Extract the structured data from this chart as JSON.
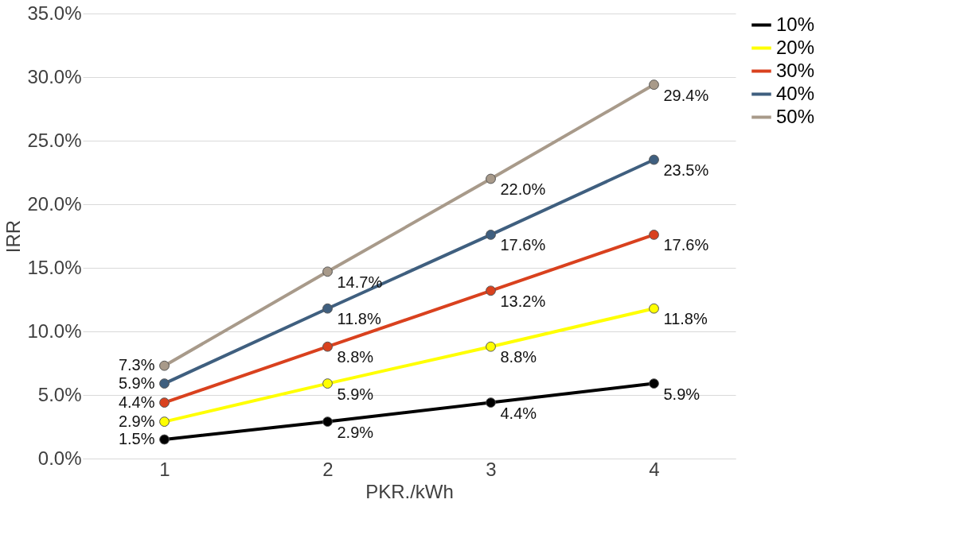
{
  "chart_data": {
    "type": "line",
    "xlabel": "PKR./kWh",
    "ylabel": "IRR",
    "categories": [
      "1",
      "2",
      "3",
      "4"
    ],
    "series": [
      {
        "name": "10%",
        "color": "#000000",
        "values": [
          1.5,
          2.9,
          4.4,
          5.9
        ],
        "value_labels": [
          "1.5%",
          "2.9%",
          "4.4%",
          "5.9%"
        ]
      },
      {
        "name": "20%",
        "color": "#ffff00",
        "values": [
          2.9,
          5.9,
          8.8,
          11.8
        ],
        "value_labels": [
          "2.9%",
          "5.9%",
          "8.8%",
          "11.8%"
        ]
      },
      {
        "name": "30%",
        "color": "#d9411e",
        "values": [
          4.4,
          8.8,
          13.2,
          17.6
        ],
        "value_labels": [
          "4.4%",
          "8.8%",
          "13.2%",
          "17.6%"
        ]
      },
      {
        "name": "40%",
        "color": "#3f5f7f",
        "values": [
          5.9,
          11.8,
          17.6,
          23.5
        ],
        "value_labels": [
          "5.9%",
          "11.8%",
          "17.6%",
          "23.5%"
        ]
      },
      {
        "name": "50%",
        "color": "#a89a8a",
        "values": [
          7.3,
          14.7,
          22.0,
          29.4
        ],
        "value_labels": [
          "7.3%",
          "14.7%",
          "22.0%",
          "29.4%"
        ]
      }
    ],
    "ylim": [
      0,
      35
    ],
    "yticks": [
      {
        "value": 0,
        "label": "0.0%"
      },
      {
        "value": 5,
        "label": "5.0%"
      },
      {
        "value": 10,
        "label": "10.0%"
      },
      {
        "value": 15,
        "label": "15.0%"
      },
      {
        "value": 20,
        "label": "20.0%"
      },
      {
        "value": 25,
        "label": "25.0%"
      },
      {
        "value": 30,
        "label": "30.0%"
      },
      {
        "value": 35,
        "label": "35.0%"
      }
    ],
    "grid": "y",
    "legend": "right",
    "marker": "circle",
    "line_style": "solid"
  }
}
